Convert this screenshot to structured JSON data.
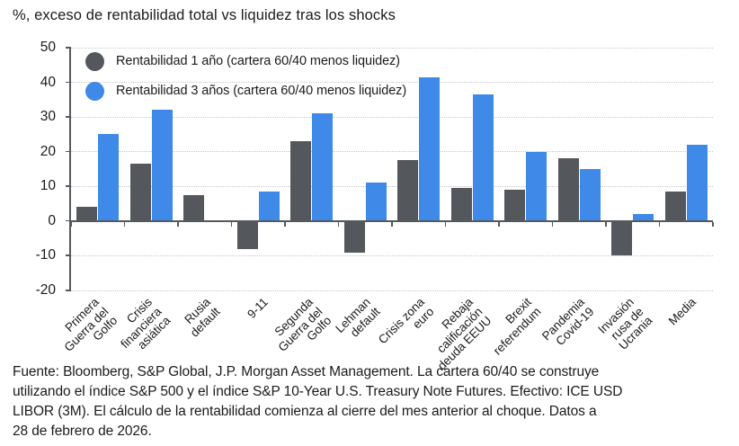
{
  "title": "%, exceso de rentabilidad total vs liquidez tras los shocks",
  "legend": {
    "items": [
      {
        "label": "Rentabilidad 1 año (cartera 60/40 menos liquidez)",
        "color": "#54585c"
      },
      {
        "label": "Rentabilidad 3 años (cartera 60/40 menos liquidez)",
        "color": "#3f8ae8"
      }
    ]
  },
  "chart_data": {
    "type": "bar",
    "title": "%, exceso de rentabilidad total vs liquidez tras los shocks",
    "categories": [
      "Primera Guerra del Golfo",
      "Crisis financiera asiática",
      "Rusia default",
      "9-11",
      "Segunda Guerra del Golfo",
      "Lehman default",
      "Crisis zona euro",
      "Rebaja calificación deuda EEUU",
      "Brexit referendum",
      "Pandemia Covid-19",
      "Invasión rusa de Ucrania",
      "Media"
    ],
    "categories_display": [
      "Primera\nGuerra del\nGolfo",
      "Crisis\nfinanciera\nasiática",
      "Rusia\ndefault",
      "9-11",
      "Segunda\nGuerra del\nGolfo",
      "Lehman\ndefault",
      "Crisis zona\neuro",
      "Rebaja\ncalificación\ndeuda EEUU",
      "Brexit\nreferendum",
      "Pandemia\nCovid-19",
      "Invasión\nrusa de\nUcrania",
      "Media"
    ],
    "series": [
      {
        "name": "Rentabilidad 1 año (cartera 60/40 menos liquidez)",
        "color": "#54585c",
        "values": [
          4,
          16.5,
          7.5,
          -8,
          23,
          -9,
          17.5,
          9.5,
          9,
          18,
          -10,
          8.5
        ]
      },
      {
        "name": "Rentabilidad 3 años (cartera 60/40 menos liquidez)",
        "color": "#3f8ae8",
        "values": [
          25,
          32,
          0,
          8.5,
          31,
          11,
          41.5,
          36.5,
          20,
          15,
          2,
          22
        ]
      }
    ],
    "xlabel": "",
    "ylabel": "%",
    "ylim": [
      -20,
      50
    ],
    "yticks": [
      50,
      40,
      30,
      20,
      10,
      0,
      -10,
      -20
    ],
    "grid": true,
    "legend_position": "top-left-inside"
  },
  "colors": {
    "bar_1y": "#54585c",
    "bar_3y": "#3f8ae8",
    "axis": "#55595d",
    "gridline": "#c6c6c6",
    "text": "#1b1b1b"
  },
  "footer": {
    "lines": [
      "Fuente: Bloomberg, S&P Global, J.P. Morgan Asset Management. La cartera 60/40 se construye",
      "utilizando el índice S&P 500 y el índice S&P 10-Year U.S. Treasury Note Futures. Efectivo: ICE USD",
      "LIBOR (3M). El cálculo de la rentabilidad comienza al cierre del mes anterior al choque. Datos a",
      "28 de febrero de 2026."
    ]
  }
}
